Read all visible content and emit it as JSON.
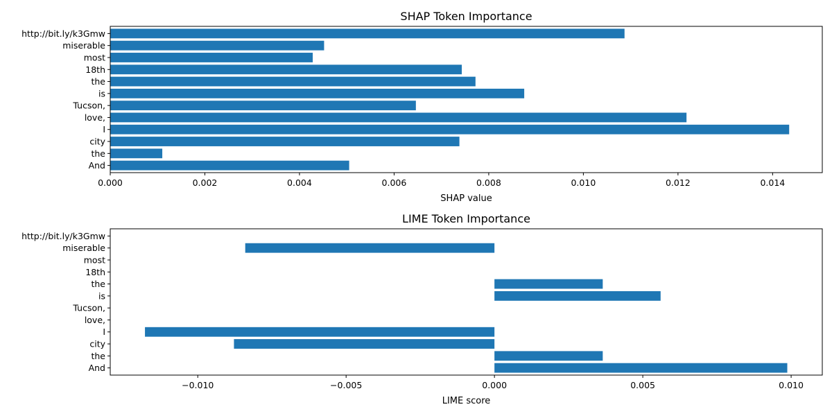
{
  "chart_data": [
    {
      "type": "bar",
      "orientation": "horizontal",
      "title": "SHAP Token Importance",
      "xlabel": "SHAP value",
      "ylabel": "",
      "categories": [
        "And",
        "the",
        "city",
        "I",
        "love,",
        "Tucson,",
        "is",
        "the",
        "18th",
        "most",
        "miserable",
        "http://bit.ly/k3Gmw"
      ],
      "values": [
        0.00505,
        0.0011,
        0.00738,
        0.01435,
        0.01218,
        0.00646,
        0.00875,
        0.00772,
        0.00743,
        0.00428,
        0.00452,
        0.01087
      ],
      "xlim": [
        0,
        0.01505
      ],
      "xticks": [
        0,
        0.002,
        0.004,
        0.006,
        0.008,
        0.01,
        0.012,
        0.014
      ],
      "xtick_labels": [
        "0.000",
        "0.002",
        "0.004",
        "0.006",
        "0.008",
        "0.010",
        "0.012",
        "0.014"
      ],
      "bar_color": "#1f77b4",
      "grid": false
    },
    {
      "type": "bar",
      "orientation": "horizontal",
      "title": "LIME Token Importance",
      "xlabel": "LIME score",
      "ylabel": "",
      "categories": [
        "And",
        "the",
        "city",
        "I",
        "love,",
        "Tucson,",
        "is",
        "the",
        "18th",
        "most",
        "miserable",
        "http://bit.ly/k3Gmw"
      ],
      "values": [
        0.00987,
        0.00365,
        -0.00878,
        -0.01178,
        0,
        0,
        0.0056,
        0.00365,
        0,
        0,
        -0.0084,
        0
      ],
      "xlim": [
        -0.01295,
        0.01105
      ],
      "xticks": [
        -0.01,
        -0.005,
        0.0,
        0.005,
        0.01
      ],
      "xtick_labels": [
        "−0.010",
        "−0.005",
        "0.000",
        "0.005",
        "0.010"
      ],
      "bar_color": "#1f77b4",
      "grid": false
    }
  ]
}
